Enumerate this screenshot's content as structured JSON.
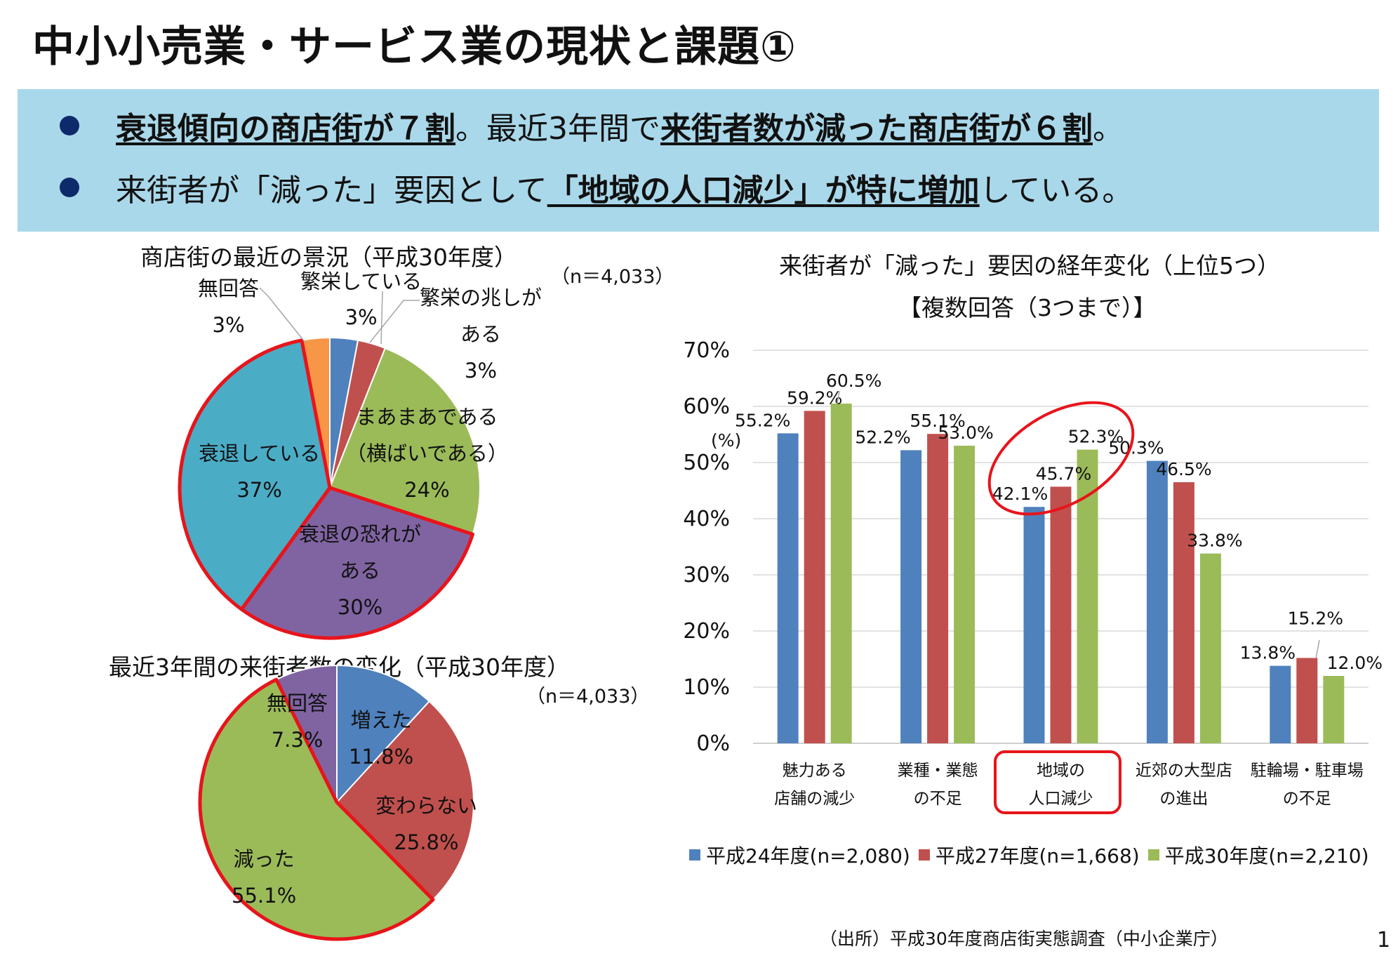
{
  "title": "中小小売業・サービス業の現状と課題①",
  "summary": {
    "line1": {
      "em1": "衰退傾向の商店街が７割",
      "t1": "。最近3年間で",
      "em2": "来街者数が減った商店街が６割",
      "t2": "。"
    },
    "line2": {
      "t1": "来街者が「減った」要因として",
      "em1": "「地域の人口減少」",
      "em2": "が特に増加",
      "t2": "している。"
    }
  },
  "colors": {
    "box_bg": "#a9d8ea",
    "blue": "#4f81bd",
    "red": "#c0504d",
    "green": "#9bbb59",
    "purple": "#8064a2",
    "teal": "#4bacc6",
    "orange": "#f79646",
    "highlight": "#e8141b"
  },
  "chart_data": [
    {
      "type": "pie",
      "title": "商店街の最近の景況（平成30年度）",
      "n_label": "（n＝4,033）",
      "slices": [
        {
          "label": "繁栄している",
          "value": 3,
          "value_label": "3%",
          "color": "#4f81bd"
        },
        {
          "label": "繁栄の兆しがある",
          "value": 3,
          "value_label": "3%",
          "color": "#c0504d"
        },
        {
          "label": "まあまあである（横ばいである）",
          "value": 24,
          "value_label": "24%",
          "color": "#9bbb59"
        },
        {
          "label": "衰退の恐れがある",
          "value": 30,
          "value_label": "30%",
          "color": "#8064a2"
        },
        {
          "label": "衰退している",
          "value": 37,
          "value_label": "37%",
          "color": "#4bacc6"
        },
        {
          "label": "無回答",
          "value": 3,
          "value_label": "3%",
          "color": "#f79646"
        }
      ],
      "labels": {
        "s0": [
          "繁栄している",
          "3%"
        ],
        "s1": [
          "繁栄の兆しが",
          "ある",
          "3%"
        ],
        "s2": [
          "まあまあである",
          "（横ばいである）",
          "24%"
        ],
        "s3": [
          "衰退の恐れが",
          "ある",
          "30%"
        ],
        "s4": [
          "衰退している",
          "37%"
        ],
        "s5": [
          "無回答",
          "3%"
        ]
      }
    },
    {
      "type": "pie",
      "title": "最近3年間の来街者数の変化（平成30年度）",
      "n_label": "（n＝4,033）",
      "slices": [
        {
          "label": "増えた",
          "value": 11.8,
          "value_label": "11.8%",
          "color": "#4f81bd"
        },
        {
          "label": "変わらない",
          "value": 25.8,
          "value_label": "25.8%",
          "color": "#c0504d"
        },
        {
          "label": "減った",
          "value": 55.1,
          "value_label": "55.1%",
          "color": "#9bbb59"
        },
        {
          "label": "無回答",
          "value": 7.3,
          "value_label": "7.3%",
          "color": "#8064a2"
        }
      ],
      "labels": {
        "s0": [
          "増えた",
          "11.8%"
        ],
        "s1": [
          "変わらない",
          "25.8%"
        ],
        "s2": [
          "減った",
          "55.1%"
        ],
        "s3": [
          "無回答",
          "7.3%"
        ]
      }
    },
    {
      "type": "bar",
      "title": "来街者が「減った」要因の経年変化（上位5つ）",
      "subtitle": "【複数回答（3つまで）】",
      "ylabel": "(%)",
      "ylim": [
        0,
        70
      ],
      "yticks": [
        "0%",
        "10%",
        "20%",
        "30%",
        "40%",
        "50%",
        "60%",
        "70%"
      ],
      "categories": [
        [
          "魅力ある",
          "店舗の減少"
        ],
        [
          "業種・業態",
          "の不足"
        ],
        [
          "地域の",
          "人口減少"
        ],
        [
          "近郊の大型店",
          "の進出"
        ],
        [
          "駐輪場・駐車場",
          "の不足"
        ]
      ],
      "series": [
        {
          "name": "平成24年度(n=2,080)",
          "color": "#4f81bd",
          "values": [
            55.2,
            52.2,
            42.1,
            50.3,
            13.8
          ]
        },
        {
          "name": "平成27年度(n=1,668)",
          "color": "#c0504d",
          "values": [
            59.2,
            55.1,
            45.7,
            46.5,
            15.2
          ]
        },
        {
          "name": "平成30年度(n=2,210)",
          "color": "#9bbb59",
          "values": [
            60.5,
            53.0,
            52.3,
            33.8,
            12.0
          ]
        }
      ],
      "value_labels": [
        [
          "55.2%",
          "52.2%",
          "42.1%",
          "50.3%",
          "13.8%"
        ],
        [
          "59.2%",
          "55.1%",
          "45.7%",
          "46.5%",
          "15.2%"
        ],
        [
          "60.5%",
          "53.0%",
          "52.3%",
          "33.8%",
          "12.0%"
        ]
      ],
      "grid": true,
      "legend_position": "bottom",
      "highlight_category": 2
    }
  ],
  "source": "（出所）平成30年度商店街実態調査（中小企業庁）",
  "page_number": "1"
}
